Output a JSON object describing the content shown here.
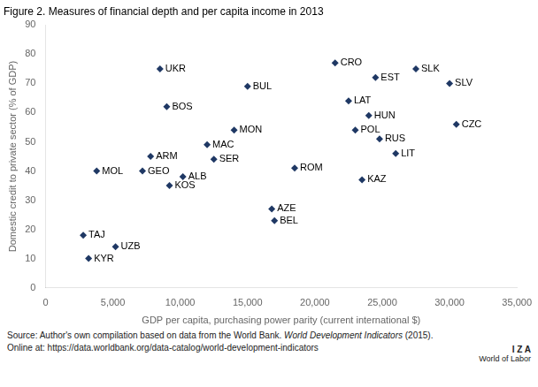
{
  "chart_data": {
    "type": "scatter",
    "title": "Figure 2. Measures of financial depth and per capita income in 2013",
    "xlabel": "GDP per capita, purchasing power parity (current international $)",
    "ylabel": "Domestic credit to private sector (% of GDP)",
    "x": [
      2800,
      3200,
      3800,
      5200,
      7200,
      7800,
      8500,
      9000,
      9200,
      10200,
      12000,
      12500,
      14000,
      15000,
      16800,
      17000,
      18500,
      21500,
      22500,
      23000,
      23500,
      24000,
      24500,
      24800,
      26000,
      27500,
      30000,
      30500
    ],
    "values": [
      18,
      10,
      40,
      14,
      40,
      45,
      75,
      62,
      35,
      38,
      49,
      44,
      54,
      69,
      27,
      23,
      41,
      77,
      64,
      54,
      37,
      59,
      72,
      51,
      46,
      75,
      70,
      56
    ],
    "labels": [
      "TAJ",
      "KYR",
      "MOL",
      "UZB",
      "GEO",
      "ARM",
      "UKR",
      "BOS",
      "KOS",
      "ALB",
      "MAC",
      "SER",
      "MON",
      "BUL",
      "AZE",
      "BEL",
      "ROM",
      "CRO",
      "LAT",
      "POL",
      "KAZ",
      "HUN",
      "EST",
      "RUS",
      "LIT",
      "SLK",
      "SLV",
      "CZC"
    ],
    "color": "#1F3864",
    "marker": "diamond",
    "xlim": [
      0,
      35000
    ],
    "ylim": [
      0,
      90
    ],
    "xticks": [
      0,
      {
        "value": 5000,
        "label": "5,000"
      },
      {
        "value": 10000,
        "label": "10,000"
      },
      {
        "value": 15000,
        "label": "15,000"
      },
      {
        "value": 20000,
        "label": "20,000"
      },
      {
        "value": 25000,
        "label": "25,000"
      },
      {
        "value": 30000,
        "label": "30,000"
      },
      {
        "value": 35000,
        "label": "35,000"
      }
    ],
    "yticks": [
      0,
      10,
      20,
      30,
      40,
      50,
      60,
      70,
      80,
      90
    ],
    "grid": false,
    "annotations": [
      [
        "Source: Author's own compilation based on data from the World Bank. ",
        "World Development Indicators",
        " (2015)."
      ],
      [
        "Online at: https://data.worldbank.org/data-catalog/world-development-indicators"
      ],
      [
        "I  Z  A"
      ],
      [
        "World of Labor"
      ]
    ]
  }
}
